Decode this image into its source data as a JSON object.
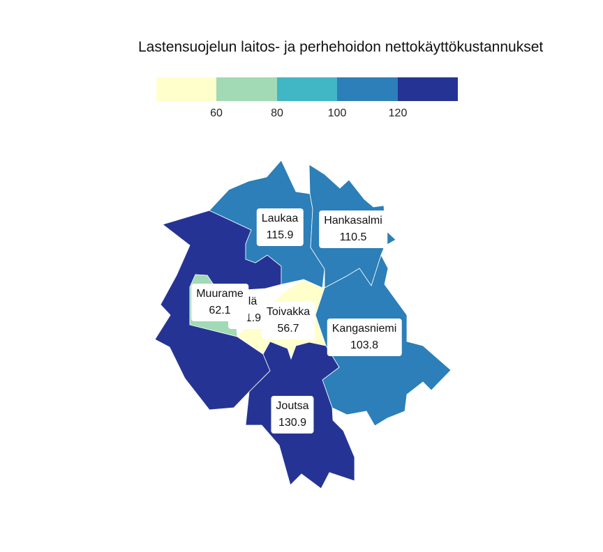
{
  "title": "Lastensuojelun laitos- ja perhehoidon nettokäyttökustannukset",
  "legend": {
    "colors": [
      "#ffffcc",
      "#a1dab4",
      "#41b6c4",
      "#2c7fb8",
      "#253494"
    ],
    "ticks": [
      "60",
      "80",
      "100",
      "120"
    ]
  },
  "regions": [
    {
      "name": "Laukaa",
      "value": "115.9",
      "color": "#2c7fb8"
    },
    {
      "name": "Hankasalmi",
      "value": "110.5",
      "color": "#2c7fb8"
    },
    {
      "name": "Muurame",
      "value": "62.1",
      "color": "#a1dab4"
    },
    {
      "name": "Jyväskylä",
      "value": "131.9",
      "color": "#253494"
    },
    {
      "name": "Toivakka",
      "value": "56.7",
      "color": "#ffffcc"
    },
    {
      "name": "Kangasniemi",
      "value": "103.8",
      "color": "#2c7fb8"
    },
    {
      "name": "Joutsa",
      "value": "130.9",
      "color": "#253494"
    }
  ],
  "label_partial": "kylä"
}
